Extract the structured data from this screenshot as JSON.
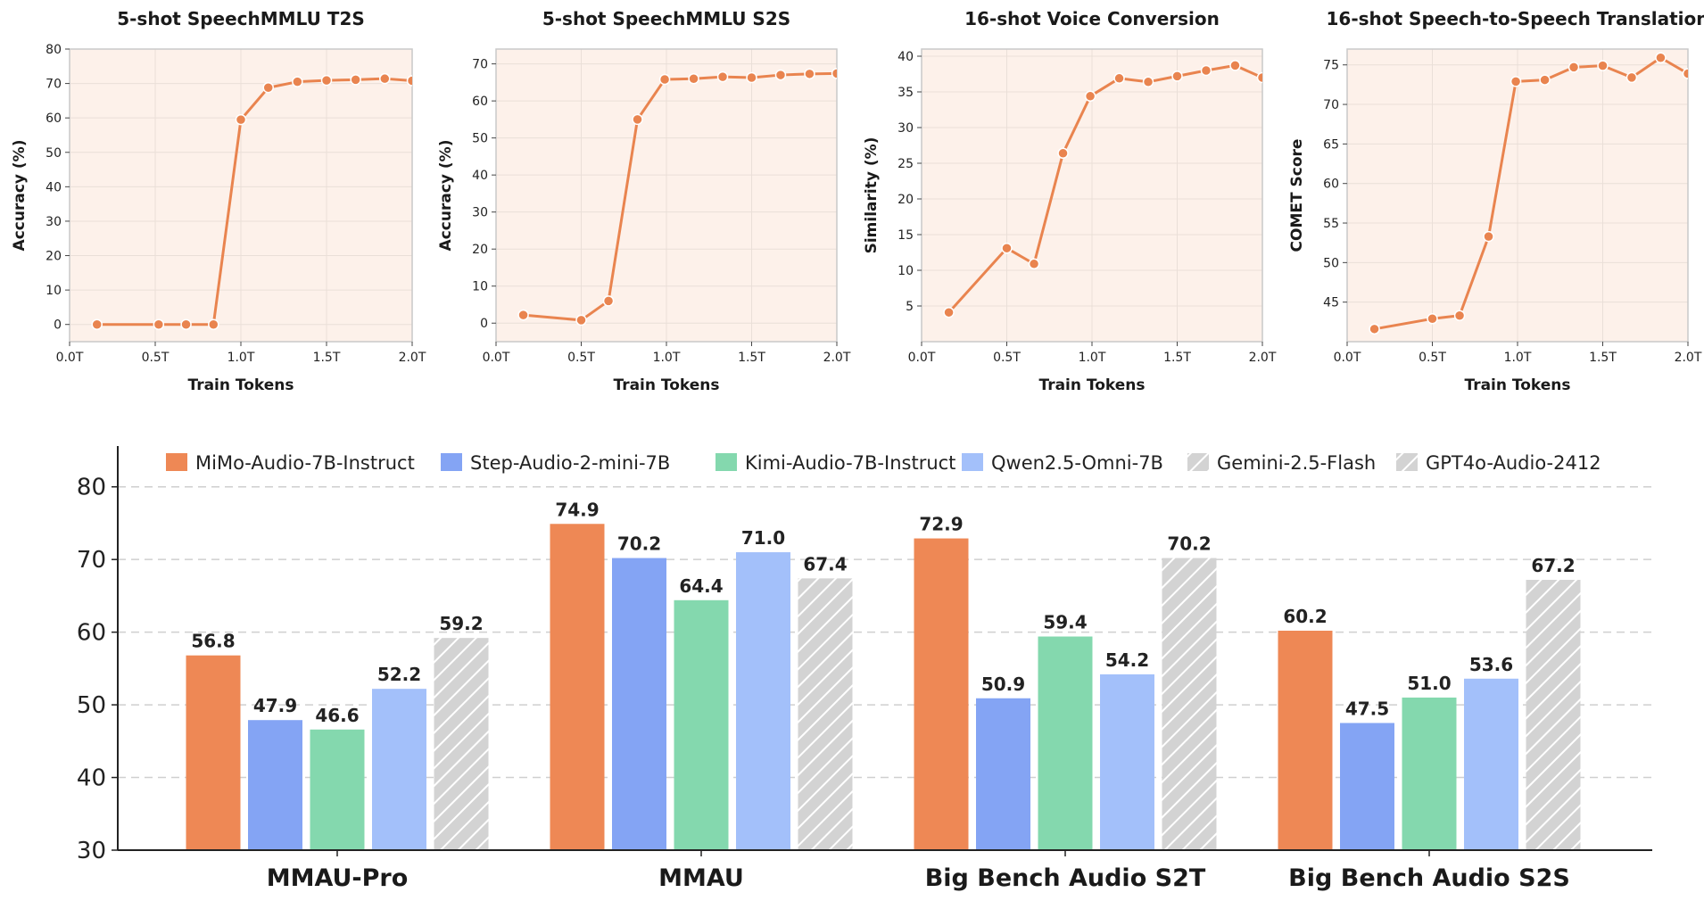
{
  "chart_data": [
    {
      "type": "line",
      "title": "5-shot SpeechMMLU T2S",
      "xlabel": "Train Tokens",
      "ylabel": "Accuracy (%)",
      "x": [
        0.16,
        0.52,
        0.68,
        0.84,
        1.0,
        1.16,
        1.33,
        1.5,
        1.67,
        1.84,
        2.0
      ],
      "y": [
        0.0,
        0.0,
        0.0,
        0.0,
        59.5,
        68.8,
        70.5,
        70.9,
        71.1,
        71.4,
        70.8
      ],
      "xlim": [
        0,
        2
      ],
      "ylim": [
        -5,
        80
      ],
      "xticks": [
        "0.0T",
        "0.5T",
        "1.0T",
        "1.5T",
        "2.0T"
      ],
      "yticks": [
        "0",
        "10",
        "20",
        "30",
        "40",
        "50",
        "60",
        "70",
        "80"
      ],
      "color": "#e9844f",
      "background": "#fdf1ea",
      "grid": true
    },
    {
      "type": "line",
      "title": "5-shot SpeechMMLU S2S",
      "xlabel": "Train Tokens",
      "ylabel": "Accuracy (%)",
      "x": [
        0.16,
        0.5,
        0.66,
        0.83,
        0.99,
        1.16,
        1.33,
        1.5,
        1.67,
        1.84,
        2.0
      ],
      "y": [
        2.2,
        0.8,
        6.0,
        55.0,
        65.8,
        66.0,
        66.5,
        66.3,
        67.0,
        67.3,
        67.4
      ],
      "xlim": [
        0,
        2
      ],
      "ylim": [
        -5,
        74
      ],
      "xticks": [
        "0.0T",
        "0.5T",
        "1.0T",
        "1.5T",
        "2.0T"
      ],
      "yticks": [
        "0",
        "10",
        "20",
        "30",
        "40",
        "50",
        "60",
        "70"
      ],
      "color": "#e9844f",
      "background": "#fdf1ea",
      "grid": true
    },
    {
      "type": "line",
      "title": "16-shot Voice Conversion",
      "xlabel": "Train Tokens",
      "ylabel": "Similarity (%)",
      "x": [
        0.16,
        0.5,
        0.66,
        0.83,
        0.99,
        1.16,
        1.33,
        1.5,
        1.67,
        1.84,
        2.0
      ],
      "y": [
        4.1,
        13.1,
        10.9,
        26.4,
        34.4,
        36.9,
        36.4,
        37.2,
        38.0,
        38.7,
        37.0
      ],
      "xlim": [
        0,
        2
      ],
      "ylim": [
        0,
        41
      ],
      "xticks": [
        "0.0T",
        "0.5T",
        "1.0T",
        "1.5T",
        "2.0T"
      ],
      "yticks": [
        "5",
        "10",
        "15",
        "20",
        "25",
        "30",
        "35",
        "40"
      ],
      "color": "#e9844f",
      "background": "#fdf1ea",
      "grid": true
    },
    {
      "type": "line",
      "title": "16-shot Speech-to-Speech Translation",
      "xlabel": "Train Tokens",
      "ylabel": "COMET Score",
      "x": [
        0.16,
        0.5,
        0.66,
        0.83,
        0.99,
        1.16,
        1.33,
        1.5,
        1.67,
        1.84,
        2.0
      ],
      "y": [
        41.6,
        42.9,
        43.3,
        53.3,
        72.9,
        73.1,
        74.7,
        74.9,
        73.4,
        75.9,
        73.9
      ],
      "xlim": [
        0,
        2
      ],
      "ylim": [
        40,
        77
      ],
      "xticks": [
        "0.0T",
        "0.5T",
        "1.0T",
        "1.5T",
        "2.0T"
      ],
      "yticks": [
        "45",
        "50",
        "55",
        "60",
        "65",
        "70",
        "75"
      ],
      "color": "#e9844f",
      "background": "#fdf1ea",
      "grid": true
    },
    {
      "type": "bar",
      "categories": [
        "MMAU-Pro",
        "MMAU",
        "Big Bench Audio S2T",
        "Big Bench Audio S2S"
      ],
      "series": [
        {
          "name": "MiMo-Audio-7B-Instruct",
          "values": [
            56.8,
            74.9,
            72.9,
            60.2
          ],
          "color": "#ee8855",
          "pattern": "solid"
        },
        {
          "name": "Step-Audio-2-mini-7B",
          "values": [
            47.9,
            70.2,
            50.9,
            47.5
          ],
          "color": "#84a4f4",
          "pattern": "solid"
        },
        {
          "name": "Kimi-Audio-7B-Instruct",
          "values": [
            46.6,
            64.4,
            59.4,
            51.0
          ],
          "color": "#84d8ae",
          "pattern": "solid"
        },
        {
          "name": "Qwen2.5-Omni-7B",
          "values": [
            52.2,
            71.0,
            54.2,
            53.6
          ],
          "color": "#a3c0fa",
          "pattern": "solid"
        },
        {
          "name": "Gemini-2.5-Flash",
          "values": [
            59.2,
            67.4,
            null,
            null
          ],
          "color": "#d3d3d3",
          "pattern": "hatch"
        },
        {
          "name": "GPT4o-Audio-2412",
          "values": [
            null,
            null,
            70.2,
            67.2
          ],
          "color": "#d3d3d3",
          "pattern": "hatch"
        }
      ],
      "ylim": [
        30,
        85
      ],
      "yticks": [
        "30",
        "40",
        "50",
        "60",
        "70",
        "80"
      ],
      "value_labels": [
        [
          "56.8",
          "47.9",
          "46.6",
          "52.2",
          "59.2"
        ],
        [
          "74.9",
          "70.2",
          "64.4",
          "71.0",
          "67.4"
        ],
        [
          "72.9",
          "50.9",
          "59.4",
          "54.2",
          "70.2"
        ],
        [
          "60.2",
          "47.5",
          "51.0",
          "53.6",
          "67.2"
        ]
      ],
      "legend_position": "top",
      "grid": "horizontal-dashed"
    }
  ]
}
